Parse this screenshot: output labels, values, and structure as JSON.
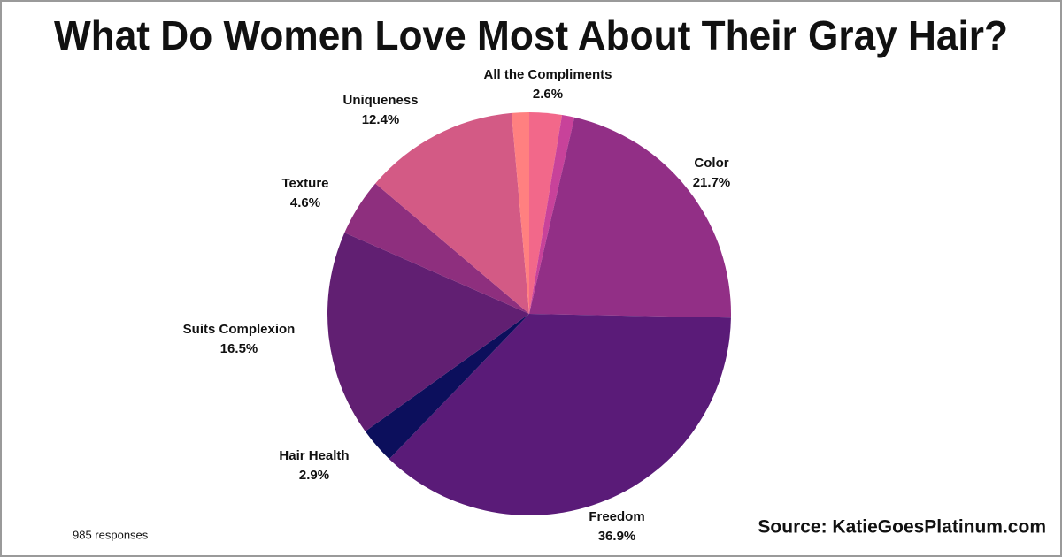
{
  "chart_data": {
    "type": "pie",
    "title": "What Do Women Love Most About Their Gray Hair?",
    "categories": [
      "All the Compliments",
      null,
      "Color",
      "Freedom",
      "Hair Health",
      "Suits Complexion",
      "Texture",
      "Uniqueness",
      null
    ],
    "values": [
      2.6,
      1.0,
      21.7,
      36.9,
      2.9,
      16.5,
      4.6,
      12.4,
      1.4
    ],
    "value_labels": [
      "2.6%",
      null,
      "21.7%",
      "36.9%",
      "2.9%",
      "16.5%",
      "4.6%",
      "12.4%",
      null
    ],
    "colors": [
      "#f2688a",
      "#c8429a",
      "#922f86",
      "#5a1b78",
      "#0c0f5c",
      "#611f72",
      "#8e2f7e",
      "#d35a85",
      "#ff8080"
    ],
    "annotations": [
      "985 responses",
      "Source: KatieGoesPlatinum.com"
    ]
  }
}
